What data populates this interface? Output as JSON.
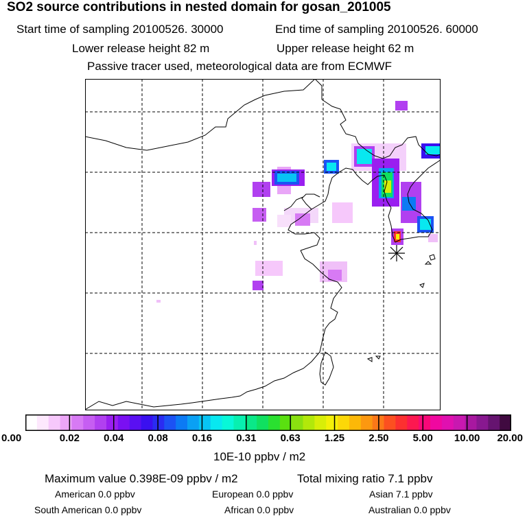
{
  "header": {
    "title": "SO2 source contributions in nested domain for gosan_201005",
    "start_time": "Start time of sampling 20100526. 30000",
    "end_time": "End time of sampling 20100526. 60000",
    "lower_release": "Lower release height   82 m",
    "upper_release": "Upper release height   62 m",
    "note": "Passive tracer used, meteorological data are from ECMWF"
  },
  "colorbar": {
    "labels": [
      "0.00",
      "0.02",
      "0.04",
      "0.08",
      "0.16",
      "0.31",
      "0.63",
      "1.25",
      "2.50",
      "5.00",
      "10.00",
      "20.00"
    ],
    "unit": "10E-10 ppbv / m2",
    "colors": [
      "#ffffff",
      "#fde8fd",
      "#f6c8fb",
      "#eca6f7",
      "#d77af4",
      "#c65ef2",
      "#b140f0",
      "#9a1ff0",
      "#7a10f2",
      "#5a10f2",
      "#3a10f0",
      "#2a2cf2",
      "#1c52f4",
      "#0c7af4",
      "#0aa0f4",
      "#08c4f4",
      "#08e8f0",
      "#08f8d8",
      "#08f0b0",
      "#0ae888",
      "#10e060",
      "#2ae030",
      "#5ae010",
      "#8ae010",
      "#b2e80a",
      "#d8ee08",
      "#f4f008",
      "#fcd808",
      "#fcb808",
      "#fc9810",
      "#fc7818",
      "#fc5020",
      "#fc3030",
      "#fc1850",
      "#f80878",
      "#f008a0",
      "#e010b0",
      "#c818b0",
      "#a818a0",
      "#881890",
      "#661470",
      "#400a40"
    ]
  },
  "summary": {
    "maximum": "Maximum value  0.398E-09 ppbv / m2",
    "total": "Total mixing ratio       7.1 ppbv",
    "american": "American        0.0 ppbv",
    "european": "European      0.0 ppbv",
    "asian": "Asian       7.1 ppbv",
    "south_american": "South American        0.0 ppbv",
    "african": "African      0.0 ppbv",
    "australian": "Australian        0.0 ppbv"
  }
}
